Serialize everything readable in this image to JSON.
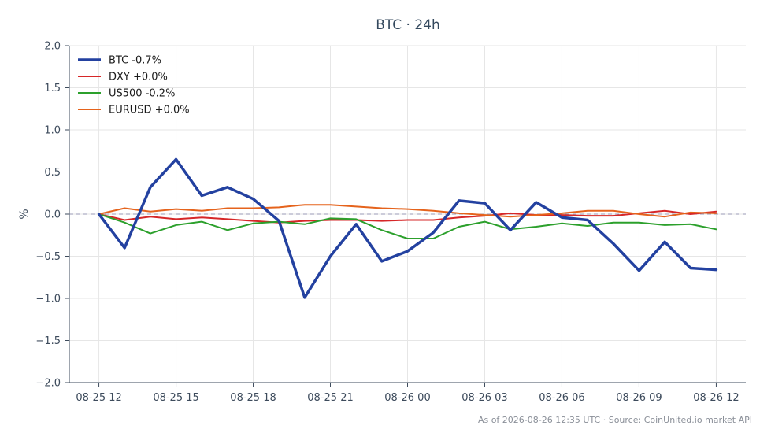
{
  "chart_data": {
    "type": "line",
    "title": "BTC · 24h",
    "xlabel": "",
    "ylabel": "%",
    "ylim": [
      -2.0,
      2.0
    ],
    "yticks": [
      2.0,
      1.5,
      1.0,
      0.5,
      0.0,
      -0.5,
      -1.0,
      -1.5,
      -2.0
    ],
    "ytick_labels": [
      "2.0",
      "1.5",
      "1.0",
      "0.5",
      "0.0",
      "−0.5",
      "−1.0",
      "−1.5",
      "−2.0"
    ],
    "x_hours": [
      0,
      1,
      2,
      3,
      4,
      5,
      6,
      7,
      8,
      9,
      10,
      11,
      12,
      13,
      14,
      15,
      16,
      17,
      18,
      19,
      20,
      21,
      22,
      23,
      24
    ],
    "xlim": [
      -1.15,
      25.15
    ],
    "xticks": [
      0,
      3,
      6,
      9,
      12,
      15,
      18,
      21,
      24
    ],
    "xtick_labels": [
      "08-25 12",
      "08-25 15",
      "08-25 18",
      "08-25 21",
      "08-26 00",
      "08-26 03",
      "08-26 06",
      "08-26 09",
      "08-26 12"
    ],
    "grid": true,
    "legend_position": "top-left",
    "zero_line": true,
    "series": [
      {
        "name": "BTC -0.7%",
        "color": "#2341a0",
        "width": 3.5,
        "values": [
          0.0,
          -0.4,
          0.32,
          0.65,
          0.22,
          0.32,
          0.18,
          -0.08,
          -0.99,
          -0.5,
          -0.12,
          -0.56,
          -0.44,
          -0.22,
          0.16,
          0.13,
          -0.19,
          0.14,
          -0.04,
          -0.07,
          -0.35,
          -0.67,
          -0.33,
          -0.64,
          -0.66
        ]
      },
      {
        "name": "DXY +0.0%",
        "color": "#d62728",
        "width": 2,
        "values": [
          0.0,
          -0.07,
          -0.03,
          -0.06,
          -0.04,
          -0.06,
          -0.08,
          -0.1,
          -0.08,
          -0.07,
          -0.07,
          -0.08,
          -0.07,
          -0.07,
          -0.04,
          -0.02,
          0.01,
          -0.01,
          -0.01,
          -0.02,
          -0.02,
          0.01,
          0.04,
          0.0,
          0.03
        ]
      },
      {
        "name": "US500 -0.2%",
        "color": "#2ca02c",
        "width": 2,
        "values": [
          0.0,
          -0.1,
          -0.23,
          -0.13,
          -0.09,
          -0.19,
          -0.11,
          -0.09,
          -0.12,
          -0.05,
          -0.06,
          -0.19,
          -0.29,
          -0.29,
          -0.15,
          -0.09,
          -0.18,
          -0.15,
          -0.11,
          -0.14,
          -0.1,
          -0.1,
          -0.13,
          -0.12,
          -0.18
        ]
      },
      {
        "name": "EURUSD +0.0%",
        "color": "#e5631c",
        "width": 2,
        "values": [
          0.0,
          0.07,
          0.03,
          0.06,
          0.04,
          0.07,
          0.07,
          0.08,
          0.11,
          0.11,
          0.09,
          0.07,
          0.06,
          0.04,
          0.01,
          -0.01,
          -0.03,
          -0.01,
          0.01,
          0.04,
          0.04,
          0.0,
          -0.03,
          0.02,
          0.01
        ]
      }
    ],
    "footer": "As of 2026-08-26 12:35 UTC · Source: CoinUnited.io market API"
  }
}
